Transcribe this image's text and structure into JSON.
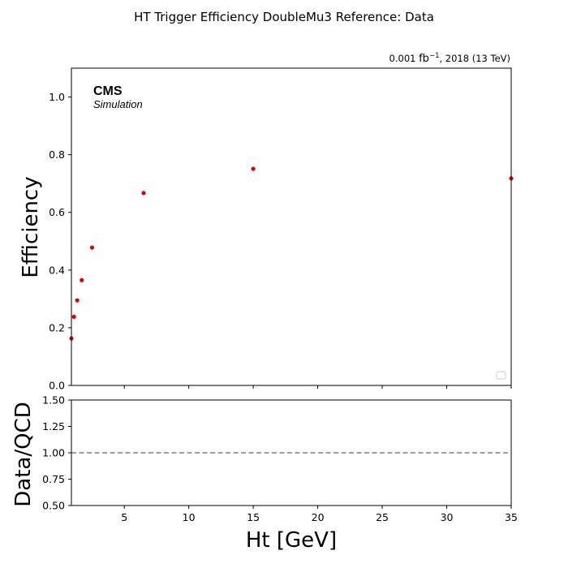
{
  "figure": {
    "suptitle": "HT Trigger Efficiency DoubleMu3 Reference: Data",
    "lumi_value": "0.001 ",
    "lumi_unit": "fb",
    "lumi_exp": "−1",
    "lumi_rest": ", 2018 (13 TeV)",
    "cms_label": "CMS",
    "cms_sublabel": "Simulation"
  },
  "chart_data": [
    {
      "type": "scatter",
      "name": "efficiency",
      "ylabel": "Efficiency",
      "xlim": [
        0.9,
        35
      ],
      "ylim": [
        0.0,
        1.1
      ],
      "yticks": [
        0.0,
        0.2,
        0.4,
        0.6,
        0.8,
        1.0
      ],
      "ytick_labels": [
        "0.0",
        "0.2",
        "0.4",
        "0.6",
        "0.8",
        "1.0"
      ],
      "xticks": [
        5,
        10,
        15,
        20,
        25,
        30,
        35
      ],
      "point_color": "#e00000",
      "series": [
        {
          "x": [
            0.9,
            1.1,
            1.35,
            1.7,
            2.5,
            6.5,
            15.0,
            35.0
          ],
          "y": [
            0.163,
            0.238,
            0.295,
            0.365,
            0.478,
            0.667,
            0.751,
            0.718
          ]
        }
      ],
      "legend": {
        "location": "lower-right",
        "entries": []
      }
    },
    {
      "type": "line",
      "name": "ratio",
      "xlabel": "Ht [GeV]",
      "ylabel": "Data/QCD",
      "xlim": [
        0.9,
        35
      ],
      "ylim": [
        0.5,
        1.5
      ],
      "yticks": [
        0.5,
        0.75,
        1.0,
        1.25,
        1.5
      ],
      "ytick_labels": [
        "0.50",
        "0.75",
        "1.00",
        "1.25",
        "1.50"
      ],
      "xticks": [
        5,
        10,
        15,
        20,
        25,
        30,
        35
      ],
      "xtick_labels": [
        "5",
        "10",
        "15",
        "20",
        "25",
        "30",
        "35"
      ],
      "reference_line": {
        "y": 1.0,
        "style": "dashed",
        "color": "#808080"
      }
    }
  ]
}
